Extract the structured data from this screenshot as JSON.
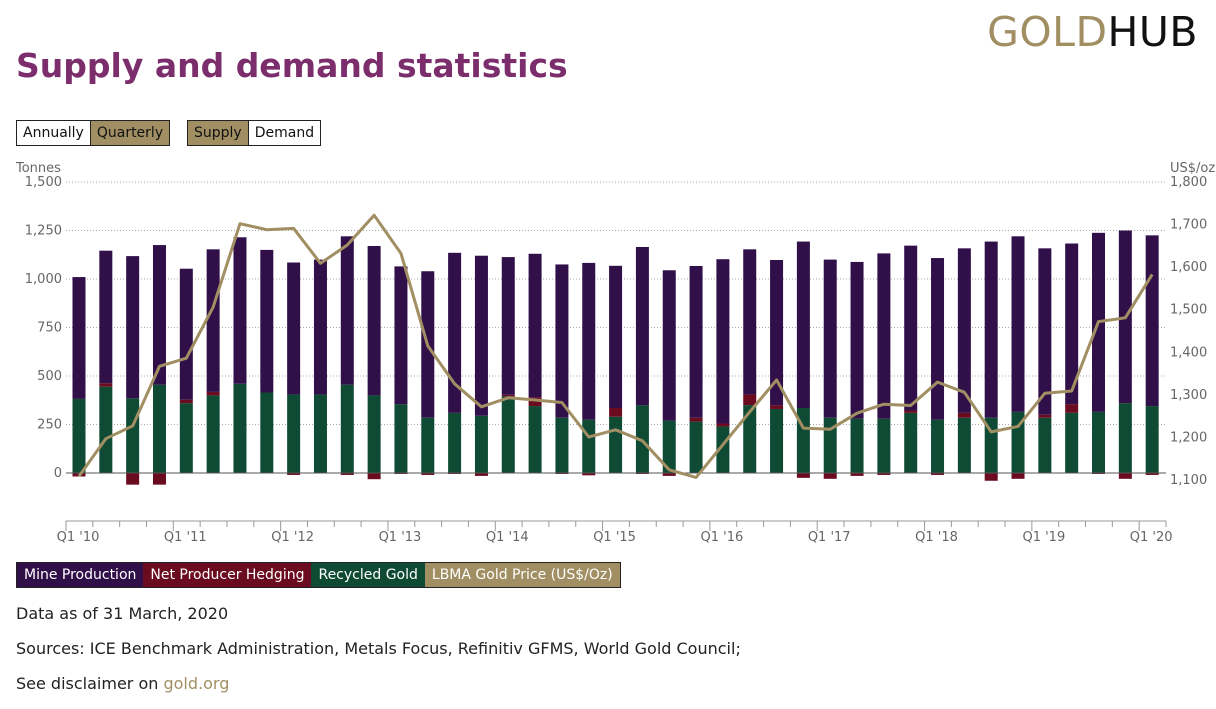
{
  "brand": {
    "part1": "GOLD",
    "part2": "HUB"
  },
  "page": {
    "title": "Supply and demand statistics"
  },
  "toggles": {
    "period": {
      "annually": "Annually",
      "quarterly": "Quarterly",
      "active": "quarterly"
    },
    "flow": {
      "supply": "Supply",
      "demand": "Demand",
      "active": "supply"
    }
  },
  "colors": {
    "mine": "#31104a",
    "hedging": "#6b0b20",
    "recycled": "#0f4a34",
    "price": "#a18f63",
    "accent_title": "#7b2d6c"
  },
  "chart_data": {
    "type": "bar",
    "stacked": true,
    "left_axis_label": "Tonnes",
    "right_axis_label": "US$/oz",
    "ylim": [
      0,
      1500
    ],
    "y_ticks": [
      0,
      250,
      500,
      750,
      1000,
      1250,
      1500
    ],
    "y_tick_labels": [
      "0",
      "250",
      "500",
      "750",
      "1,000",
      "1,250",
      "1,500"
    ],
    "y2lim": [
      1100,
      1800
    ],
    "y2_ticks": [
      1100,
      1200,
      1300,
      1400,
      1500,
      1600,
      1700,
      1800
    ],
    "y2_tick_labels": [
      "1,100",
      "1,200",
      "1,300",
      "1,400",
      "1,500",
      "1,600",
      "1,700",
      "1,800"
    ],
    "x_tick_labels": [
      "Q1 '10",
      "Q1 '11",
      "Q1 '12",
      "Q1 '13",
      "Q1 '14",
      "Q1 '15",
      "Q1 '16",
      "Q1 '17",
      "Q1 '18",
      "Q1 '19",
      "Q1 '20"
    ],
    "categories": [
      "Q1 '10",
      "Q2 '10",
      "Q3 '10",
      "Q4 '10",
      "Q1 '11",
      "Q2 '11",
      "Q3 '11",
      "Q4 '11",
      "Q1 '12",
      "Q2 '12",
      "Q3 '12",
      "Q4 '12",
      "Q1 '13",
      "Q2 '13",
      "Q3 '13",
      "Q4 '13",
      "Q1 '14",
      "Q2 '14",
      "Q3 '14",
      "Q4 '14",
      "Q1 '15",
      "Q2 '15",
      "Q3 '15",
      "Q4 '15",
      "Q1 '16",
      "Q2 '16",
      "Q3 '16",
      "Q4 '16",
      "Q1 '17",
      "Q2 '17",
      "Q3 '17",
      "Q4 '17",
      "Q1 '18",
      "Q2 '18",
      "Q3 '18",
      "Q4 '18",
      "Q1 '19",
      "Q2 '19",
      "Q3 '19",
      "Q4 '19",
      "Q1 '20"
    ],
    "grid": true,
    "legend_position": "bottom-left",
    "series": [
      {
        "name": "Mine Production",
        "axis": "left",
        "type": "bar",
        "values": [
          628,
          683,
          733,
          720,
          675,
          735,
          755,
          735,
          680,
          695,
          765,
          770,
          710,
          755,
          825,
          825,
          710,
          740,
          790,
          808,
          733,
          815,
          775,
          782,
          847,
          748,
          748,
          858,
          815,
          808,
          852,
          850,
          833,
          848,
          908,
          905,
          858,
          828,
          923,
          890,
          880
        ]
      },
      {
        "name": "Net Producer Hedging",
        "axis": "left",
        "type": "bar",
        "values": [
          -18,
          18,
          -60,
          -60,
          18,
          18,
          -2,
          -2,
          -10,
          -2,
          -10,
          -32,
          -5,
          -10,
          -5,
          -15,
          8,
          45,
          -5,
          -12,
          45,
          -5,
          -15,
          20,
          15,
          55,
          20,
          -25,
          -30,
          -15,
          -10,
          12,
          -10,
          25,
          -40,
          -30,
          15,
          45,
          -5,
          -30,
          -10
        ]
      },
      {
        "name": "Recycled Gold",
        "axis": "left",
        "type": "bar",
        "values": [
          382,
          445,
          385,
          455,
          360,
          400,
          460,
          415,
          405,
          405,
          455,
          400,
          355,
          285,
          310,
          295,
          395,
          345,
          285,
          275,
          290,
          350,
          270,
          265,
          240,
          350,
          330,
          335,
          285,
          280,
          280,
          310,
          275,
          285,
          285,
          315,
          285,
          310,
          315,
          360,
          345
        ]
      },
      {
        "name": "LBMA Gold Price (US$/Oz)",
        "axis": "right",
        "type": "line",
        "values": [
          1109,
          1197,
          1227,
          1367,
          1386,
          1506,
          1702,
          1688,
          1691,
          1609,
          1652,
          1722,
          1632,
          1415,
          1326,
          1272,
          1293,
          1288,
          1282,
          1201,
          1218,
          1192,
          1124,
          1106,
          1183,
          1260,
          1335,
          1222,
          1219,
          1257,
          1278,
          1275,
          1330,
          1306,
          1213,
          1226,
          1304,
          1309,
          1472,
          1481,
          1583
        ]
      }
    ]
  },
  "footer": {
    "data_as_of": "Data as of 31 March, 2020",
    "sources": "Sources: ICE Benchmark Administration, Metals Focus, Refinitiv GFMS, World Gold Council;",
    "disclaimer_prefix": "See disclaimer on ",
    "disclaimer_link": "gold.org"
  }
}
